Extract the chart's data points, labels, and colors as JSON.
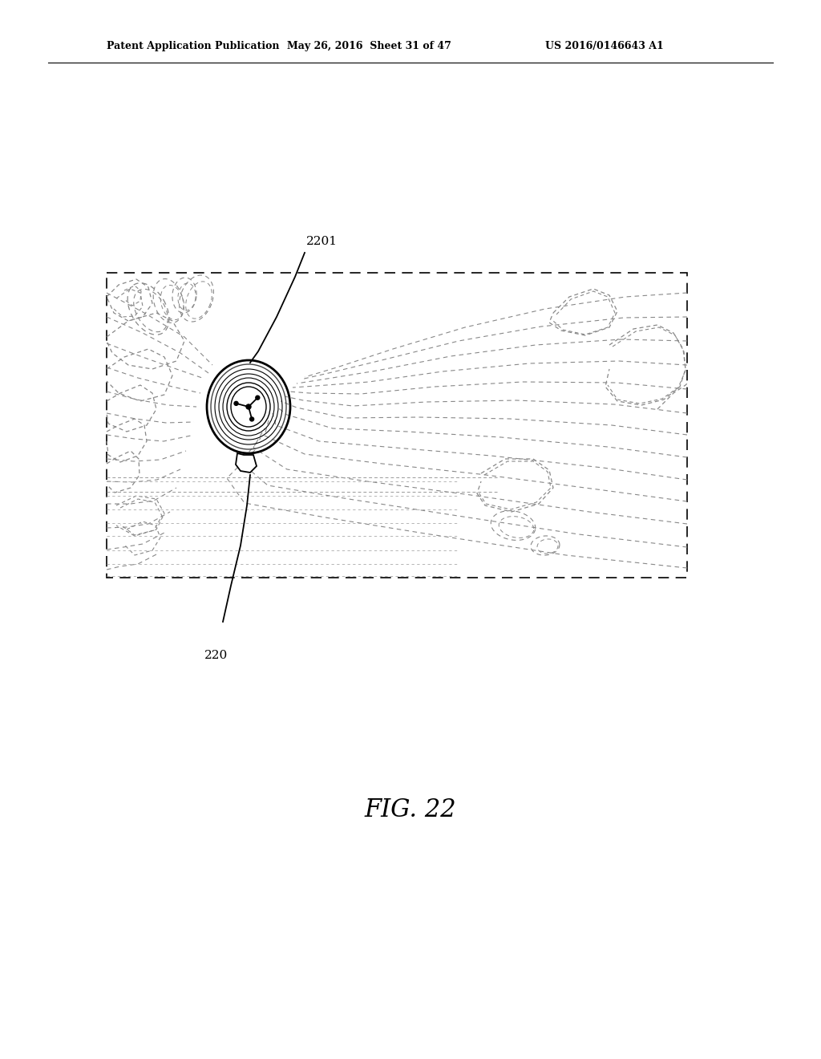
{
  "title": "FIG. 22",
  "header_left": "Patent Application Publication",
  "header_mid": "May 26, 2016  Sheet 31 of 47",
  "header_right": "US 2016/0146643 A1",
  "label_2201": "2201",
  "label_220": "220",
  "bg_color": "#ffffff",
  "line_color": "#000000",
  "fig_width": 10.24,
  "fig_height": 13.2,
  "dpi": 100
}
